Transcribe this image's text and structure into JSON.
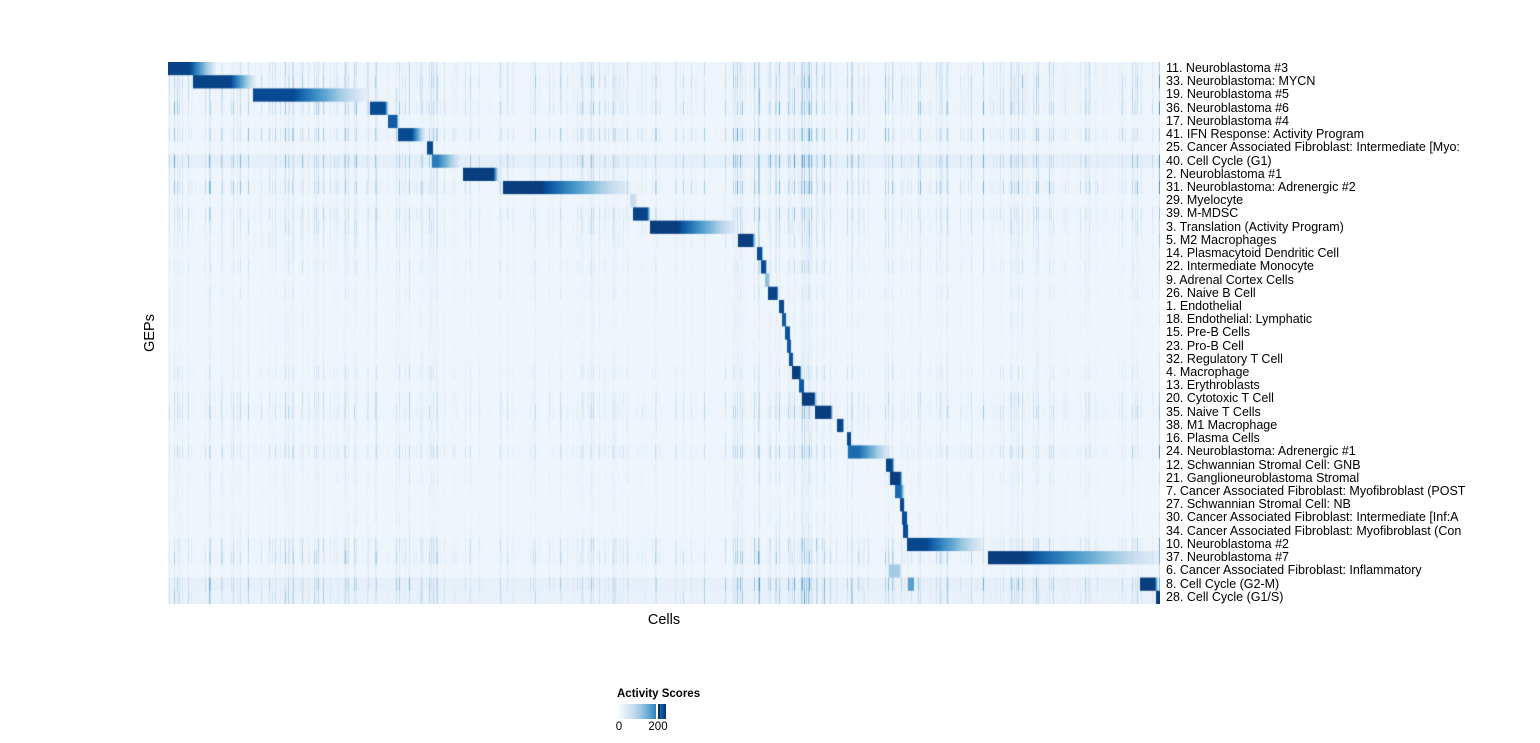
{
  "figure": {
    "y_axis_label": "GEPs",
    "x_axis_label": "Cells"
  },
  "chart_data": {
    "type": "heatmap",
    "title": "",
    "xlabel": "Cells",
    "ylabel": "GEPs",
    "x_axis": "individual cells ordered by assigned GEP (no tick labels shown)",
    "value_name": "Activity Scores",
    "value_range": [
      0,
      240
    ],
    "legend": {
      "title": "Activity Scores",
      "min_label": "0",
      "tick_label": "200",
      "tick_fraction": 0.84,
      "low_color": "#ffffff",
      "high_color": "#08306b"
    },
    "colorscale": {
      "stops": [
        [
          0.0,
          "#f5f9fd"
        ],
        [
          0.13,
          "#deebf7"
        ],
        [
          0.26,
          "#c6dbef"
        ],
        [
          0.39,
          "#9ecae1"
        ],
        [
          0.52,
          "#6baed6"
        ],
        [
          0.65,
          "#4292c6"
        ],
        [
          0.78,
          "#2171b5"
        ],
        [
          0.9,
          "#08519c"
        ],
        [
          1.0,
          "#08306b"
        ]
      ]
    },
    "structure_note": "Each GEP row has a high-activity block over its own cell group, forming a diagonal staircase from top-left to bottom-right; start/end are fractions of the x axis, peak is activity score (max color ~240), solid is the fraction of the block at peak before fading right, noise is background vertical-streak intensity.",
    "rows": [
      {
        "label": "11. Neuroblastoma #3",
        "start": 0.0,
        "end": 0.048,
        "solid": 0.45,
        "peak": 240,
        "noise": 0.3
      },
      {
        "label": "33. Neuroblastoma: MYCN",
        "start": 0.025,
        "end": 0.088,
        "solid": 0.6,
        "peak": 240,
        "noise": 0.35
      },
      {
        "label": "19. Neuroblastoma #5",
        "start": 0.086,
        "end": 0.2,
        "solid": 0.35,
        "peak": 235,
        "noise": 0.3
      },
      {
        "label": "36. Neuroblastoma #6",
        "start": 0.204,
        "end": 0.222,
        "solid": 0.8,
        "peak": 235,
        "noise": 0.4
      },
      {
        "label": "17. Neuroblastoma #4",
        "start": 0.222,
        "end": 0.232,
        "solid": 0.8,
        "peak": 220,
        "noise": 0.15
      },
      {
        "label": "41. IFN Response: Activity Program",
        "start": 0.232,
        "end": 0.259,
        "solid": 0.5,
        "peak": 235,
        "noise": 0.4
      },
      {
        "label": "25. Cancer Associated Fibroblast: Intermediate [Myo:",
        "start": 0.261,
        "end": 0.267,
        "solid": 0.9,
        "peak": 235,
        "noise": 0.12
      },
      {
        "label": "40. Cell Cycle (G1)",
        "start": 0.266,
        "end": 0.295,
        "solid": 0.18,
        "peak": 190,
        "noise": 0.45,
        "tint": 0.08
      },
      {
        "label": "2. Neuroblastoma #1",
        "start": 0.297,
        "end": 0.333,
        "solid": 0.85,
        "peak": 245,
        "noise": 0.25
      },
      {
        "label": "31. Neuroblastoma: Adrenergic #2",
        "start": 0.338,
        "end": 0.465,
        "solid": 0.3,
        "peak": 245,
        "noise": 0.4
      },
      {
        "label": "29. Myelocyte",
        "start": 0.466,
        "end": 0.472,
        "solid": 0.8,
        "peak": 60,
        "noise": 0.15
      },
      {
        "label": "39. M-MDSC",
        "start": 0.469,
        "end": 0.486,
        "solid": 0.8,
        "peak": 240,
        "noise": 0.3
      },
      {
        "label": "3. Translation (Activity Program)",
        "start": 0.486,
        "end": 0.574,
        "solid": 0.31,
        "peak": 245,
        "noise": 0.25
      },
      {
        "label": "5. M2 Macrophages",
        "start": 0.575,
        "end": 0.592,
        "solid": 0.8,
        "peak": 245,
        "noise": 0.2
      },
      {
        "label": "14. Plasmacytoid Dendritic Cell",
        "start": 0.594,
        "end": 0.599,
        "solid": 0.9,
        "peak": 235,
        "noise": 0.15
      },
      {
        "label": "22. Intermediate Monocyte",
        "start": 0.598,
        "end": 0.603,
        "solid": 0.9,
        "peak": 235,
        "noise": 0.2
      },
      {
        "label": "9. Adrenal Cortex Cells",
        "start": 0.602,
        "end": 0.606,
        "solid": 0.9,
        "peak": 110,
        "noise": 0.1
      },
      {
        "label": "26. Naive B Cell",
        "start": 0.605,
        "end": 0.615,
        "solid": 0.85,
        "peak": 240,
        "noise": 0.15
      },
      {
        "label": "1. Endothelial",
        "start": 0.616,
        "end": 0.621,
        "solid": 0.9,
        "peak": 235,
        "noise": 0.1
      },
      {
        "label": "18. Endothelial: Lymphatic",
        "start": 0.619,
        "end": 0.623,
        "solid": 0.9,
        "peak": 220,
        "noise": 0.12
      },
      {
        "label": "15. Pre-B Cells",
        "start": 0.622,
        "end": 0.627,
        "solid": 0.9,
        "peak": 228,
        "noise": 0.1
      },
      {
        "label": "23. Pro-B Cell",
        "start": 0.624,
        "end": 0.628,
        "solid": 0.9,
        "peak": 222,
        "noise": 0.1
      },
      {
        "label": "32. Regulatory T Cell",
        "start": 0.626,
        "end": 0.63,
        "solid": 0.9,
        "peak": 228,
        "noise": 0.12
      },
      {
        "label": "4. Macrophage",
        "start": 0.629,
        "end": 0.638,
        "solid": 0.85,
        "peak": 245,
        "noise": 0.2
      },
      {
        "label": "13. Erythroblasts",
        "start": 0.636,
        "end": 0.641,
        "solid": 0.9,
        "peak": 222,
        "noise": 0.12
      },
      {
        "label": "20. Cytotoxic T Cell",
        "start": 0.639,
        "end": 0.653,
        "solid": 0.85,
        "peak": 245,
        "noise": 0.25
      },
      {
        "label": "35. Naive T Cells",
        "start": 0.652,
        "end": 0.67,
        "solid": 0.85,
        "peak": 245,
        "noise": 0.3
      },
      {
        "label": "38. M1 Macrophage",
        "start": 0.674,
        "end": 0.681,
        "solid": 0.85,
        "peak": 238,
        "noise": 0.18
      },
      {
        "label": "16. Plasma Cells",
        "start": 0.684,
        "end": 0.688,
        "solid": 0.9,
        "peak": 238,
        "noise": 0.15
      },
      {
        "label": "24. Neuroblastoma: Adrenergic #1",
        "start": 0.685,
        "end": 0.728,
        "solid": 0.25,
        "peak": 205,
        "noise": 0.3
      },
      {
        "label": "12. Schwannian Stromal Cell: GNB",
        "start": 0.724,
        "end": 0.732,
        "solid": 0.7,
        "peak": 238,
        "noise": 0.12
      },
      {
        "label": "21. Ganglioneuroblastoma Stromal",
        "start": 0.728,
        "end": 0.74,
        "solid": 0.8,
        "peak": 245,
        "noise": 0.15
      },
      {
        "label": "7. Cancer Associated Fibroblast: Myofibroblast (POST",
        "start": 0.733,
        "end": 0.742,
        "solid": 0.6,
        "peak": 205,
        "noise": 0.12
      },
      {
        "label": "27. Schwannian Stromal Cell: NB",
        "start": 0.738,
        "end": 0.742,
        "solid": 0.9,
        "peak": 238,
        "noise": 0.1
      },
      {
        "label": "30. Cancer Associated Fibroblast: Intermediate [Inf:A",
        "start": 0.74,
        "end": 0.745,
        "solid": 0.9,
        "peak": 232,
        "noise": 0.12
      },
      {
        "label": "34. Cancer Associated Fibroblast: Myofibroblast (Con",
        "start": 0.741,
        "end": 0.746,
        "solid": 0.9,
        "peak": 232,
        "noise": 0.12
      },
      {
        "label": "10. Neuroblastoma #2",
        "start": 0.745,
        "end": 0.822,
        "solid": 0.25,
        "peak": 238,
        "noise": 0.3
      },
      {
        "label": "37. Neuroblastoma #7",
        "start": 0.827,
        "end": 1.0,
        "solid": 0.2,
        "peak": 245,
        "noise": 0.35
      },
      {
        "label": "6. Cancer Associated Fibroblast: Inflammatory",
        "start": 0.727,
        "end": 0.739,
        "solid": 0.8,
        "peak": 95,
        "noise": 0.15
      },
      {
        "label": "8. Cell Cycle (G2-M)",
        "start": 0.98,
        "end": 0.998,
        "solid": 0.8,
        "peak": 245,
        "noise": 0.4,
        "tint": 0.07,
        "block2": {
          "start": 0.745,
          "end": 0.752,
          "peak": 150
        }
      },
      {
        "label": "28. Cell Cycle (G1/S)",
        "start": 0.996,
        "end": 1.0,
        "solid": 0.9,
        "peak": 245,
        "noise": 0.35,
        "tint": 0.06
      }
    ]
  }
}
